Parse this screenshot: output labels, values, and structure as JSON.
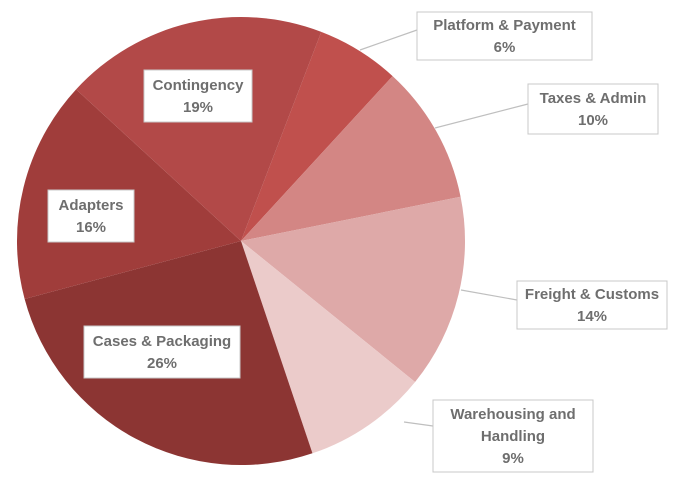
{
  "chart_data": {
    "type": "pie",
    "title": "",
    "slices": [
      {
        "label_lines": [
          "Platform & Payment"
        ],
        "value_text": "6%",
        "value": 6,
        "color": "#c0504d"
      },
      {
        "label_lines": [
          "Taxes & Admin"
        ],
        "value_text": "10%",
        "value": 10,
        "color": "#d38684"
      },
      {
        "label_lines": [
          "Freight & Customs"
        ],
        "value_text": "14%",
        "value": 14,
        "color": "#dea9a8"
      },
      {
        "label_lines": [
          "Warehousing and",
          "Handling"
        ],
        "value_text": "9%",
        "value": 9,
        "color": "#ebcbca"
      },
      {
        "label_lines": [
          "Cases & Packaging"
        ],
        "value_text": "26%",
        "value": 26,
        "color": "#8c3533"
      },
      {
        "label_lines": [
          "Adapters"
        ],
        "value_text": "16%",
        "value": 16,
        "color": "#a03d3b"
      },
      {
        "label_lines": [
          "Contingency"
        ],
        "value_text": "19%",
        "value": 19,
        "color": "#b24948"
      }
    ]
  }
}
